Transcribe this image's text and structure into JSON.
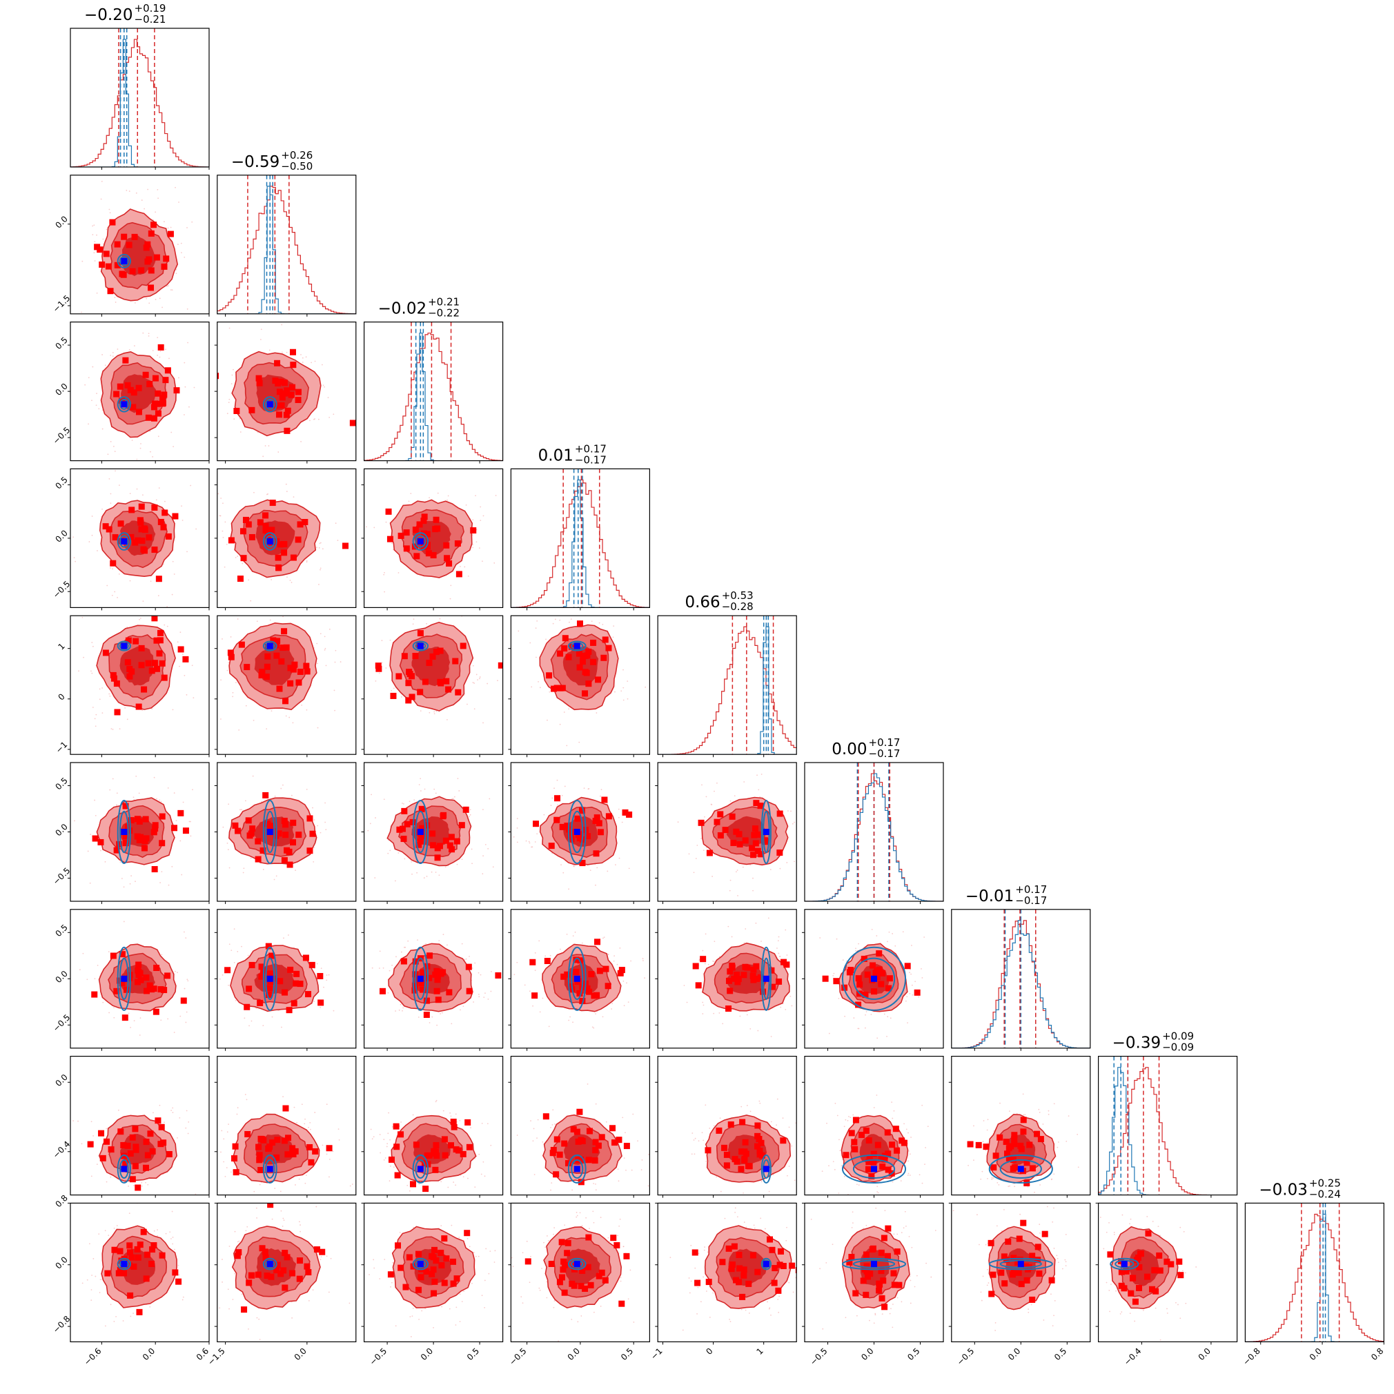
{
  "colors": {
    "red": "#d62728",
    "red_fill_outer": "#f4a6a6",
    "red_fill_mid": "#e86a6a",
    "red_fill_inner": "#d62728",
    "blue": "#1f77b4",
    "blue_light": "#9ecae1",
    "marker_red": "#ff0000",
    "marker_blue": "#0000ff"
  },
  "chart_data": {
    "type": "corner",
    "n_params": 9,
    "grid": false,
    "series": [
      {
        "color": "#d62728",
        "style": "filled-contours-and-histograms"
      },
      {
        "color": "#1f77b4",
        "style": "line-contours-and-histograms"
      }
    ],
    "titles": [
      {
        "value": "−0.20",
        "plus": "+0.19",
        "minus": "−0.21"
      },
      {
        "value": "−0.59",
        "plus": "+0.26",
        "minus": "−0.50"
      },
      {
        "value": "−0.02",
        "plus": "+0.21",
        "minus": "−0.22"
      },
      {
        "value": "0.01",
        "plus": "+0.17",
        "minus": "−0.17"
      },
      {
        "value": "0.66",
        "plus": "+0.53",
        "minus": "−0.28"
      },
      {
        "value": "0.00",
        "plus": "+0.17",
        "minus": "−0.17"
      },
      {
        "value": "−0.01",
        "plus": "+0.17",
        "minus": "−0.17"
      },
      {
        "value": "−0.39",
        "plus": "+0.09",
        "minus": "−0.09"
      },
      {
        "value": "−0.03",
        "plus": "+0.25",
        "minus": "−0.24"
      }
    ],
    "ranges": [
      [
        -0.95,
        0.6
      ],
      [
        -1.65,
        0.9
      ],
      [
        -0.75,
        0.75
      ],
      [
        -0.65,
        0.65
      ],
      [
        -1.1,
        1.65
      ],
      [
        -0.75,
        0.75
      ],
      [
        -0.75,
        0.75
      ],
      [
        -0.65,
        0.15
      ],
      [
        -1.0,
        0.8
      ]
    ],
    "tick_values": [
      [
        -0.6,
        0.0,
        0.6
      ],
      [
        -1.5,
        0.0
      ],
      [
        -0.5,
        0.0,
        0.5
      ],
      [
        -0.5,
        0.0,
        0.5
      ],
      [
        -1,
        0,
        1
      ],
      [
        -0.5,
        0.0,
        0.5
      ],
      [
        -0.5,
        0.0,
        0.5
      ],
      [
        -0.4,
        0.0
      ],
      [
        -0.8,
        0.0,
        0.8
      ]
    ],
    "tick_labels": [
      [
        "−0.6",
        "0.0",
        "0.6"
      ],
      [
        "−1.5",
        "0.0"
      ],
      [
        "−0.5",
        "0.0",
        "0.5"
      ],
      [
        "−0.5",
        "0.0",
        "0.5"
      ],
      [
        "−1",
        "0",
        "1"
      ],
      [
        "−0.5",
        "0.0",
        "0.5"
      ],
      [
        "−0.5",
        "0.0",
        "0.5"
      ],
      [
        "−0.4",
        "0.0"
      ],
      [
        "−0.8",
        "0.0",
        "0.8"
      ]
    ],
    "red_quantiles": [
      [
        -0.41,
        -0.2,
        -0.01
      ],
      [
        -1.09,
        -0.59,
        -0.33
      ],
      [
        -0.24,
        -0.02,
        0.19
      ],
      [
        -0.16,
        0.01,
        0.18
      ],
      [
        0.38,
        0.66,
        1.19
      ],
      [
        -0.17,
        0.0,
        0.17
      ],
      [
        -0.18,
        -0.01,
        0.16
      ],
      [
        -0.48,
        -0.39,
        -0.3
      ],
      [
        -0.27,
        -0.03,
        0.22
      ]
    ],
    "blue_quantiles": [
      [
        -0.39,
        -0.35,
        -0.32
      ],
      [
        -0.74,
        -0.68,
        -0.63
      ],
      [
        -0.19,
        -0.14,
        -0.11
      ],
      [
        -0.06,
        -0.02,
        0.02
      ],
      [
        1.0,
        1.05,
        1.09
      ],
      [
        -0.18,
        0.0,
        0.16
      ],
      [
        -0.17,
        0.0,
        0.16
      ],
      [
        -0.56,
        -0.52,
        -0.48
      ],
      [
        -0.03,
        0.01,
        0.04
      ]
    ],
    "truth": [
      -0.35,
      -0.68,
      -0.14,
      -0.03,
      1.05,
      0.0,
      0.0,
      -0.5,
      0.01
    ],
    "red_centers": [
      -0.2,
      -0.59,
      -0.02,
      0.01,
      0.66,
      0.0,
      -0.01,
      -0.39,
      -0.03
    ],
    "red_widths": [
      0.2,
      0.38,
      0.21,
      0.17,
      0.4,
      0.17,
      0.17,
      0.09,
      0.245
    ],
    "blue_centers": [
      -0.35,
      -0.68,
      -0.14,
      -0.02,
      1.05,
      0.0,
      0.0,
      -0.52,
      0.01
    ],
    "blue_widths": [
      0.035,
      0.06,
      0.04,
      0.04,
      0.045,
      0.17,
      0.17,
      0.04,
      0.035
    ]
  }
}
